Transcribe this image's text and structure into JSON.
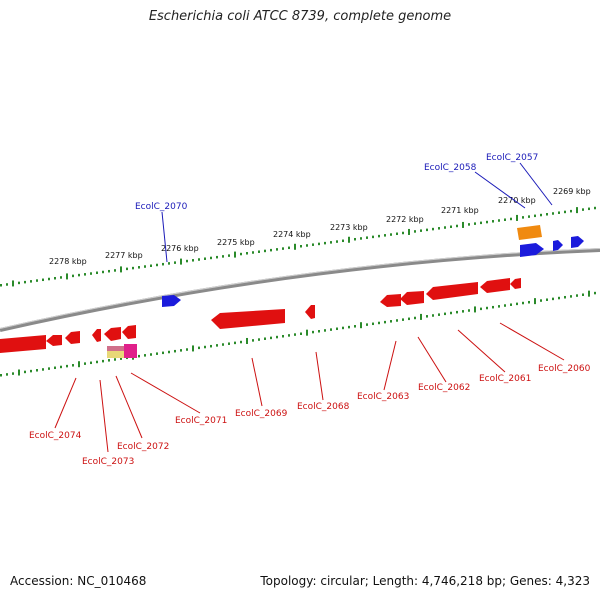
{
  "title": "Escherichia coli ATCC 8739, complete genome",
  "footer": {
    "accession": "Accession: NC_010468",
    "summary": "Topology: circular; Length: 4,746,218 bp; Genes: 4,323"
  },
  "colors": {
    "backbone": "#8a8a8a",
    "tick": "#2a8a2a",
    "forward_gene": "#1b1bdc",
    "reverse_gene": "#e01010",
    "forward_label": "#1a1ab8",
    "reverse_label": "#cc1111",
    "highlight_orange": "#f08a10",
    "highlight_pink": "#e0208a",
    "highlight_yellow": "#e8d878"
  },
  "scale_labels": [
    "2269 kbp",
    "2270 kbp",
    "2271 kbp",
    "2272 kbp",
    "2273 kbp",
    "2274 kbp",
    "2275 kbp",
    "2276 kbp",
    "2277 kbp",
    "2278 kbp"
  ],
  "forward_labels": [
    "EcolC_2057",
    "EcolC_2058",
    "EcolC_2070"
  ],
  "reverse_labels": [
    "EcolC_2060",
    "EcolC_2061",
    "EcolC_2062",
    "EcolC_2063",
    "EcolC_2068",
    "EcolC_2069",
    "EcolC_2071",
    "EcolC_2072",
    "EcolC_2073",
    "EcolC_2074"
  ]
}
